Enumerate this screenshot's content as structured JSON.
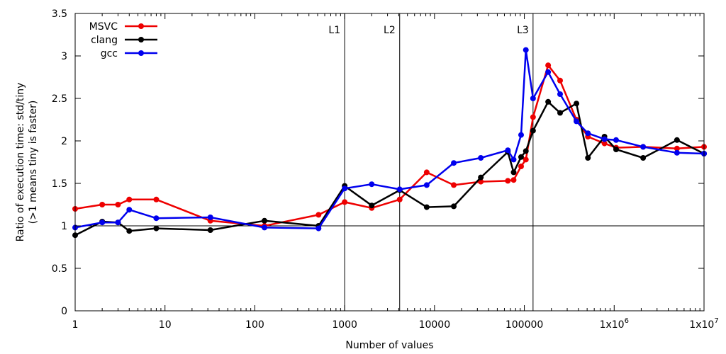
{
  "chart_data": {
    "type": "line",
    "xlabel": "Number of values",
    "ylabel_line1": "Ratio of execution time: std/tiny",
    "ylabel_line2": "(>1 means tiny is faster)",
    "x_scale": "log",
    "xlim": [
      1,
      10000000
    ],
    "ylim": [
      0,
      3.5
    ],
    "x_ticks": [
      {
        "value": 1,
        "label": "1"
      },
      {
        "value": 10,
        "label": "10"
      },
      {
        "value": 100,
        "label": "100"
      },
      {
        "value": 1000,
        "label": "1000"
      },
      {
        "value": 10000,
        "label": "10000"
      },
      {
        "value": 100000,
        "label": "100000"
      },
      {
        "value": 1000000,
        "label": "1x10",
        "sup": "6"
      },
      {
        "value": 10000000,
        "label": "1x10",
        "sup": "7"
      }
    ],
    "y_ticks": [
      {
        "value": 0,
        "label": "0"
      },
      {
        "value": 0.5,
        "label": "0.5"
      },
      {
        "value": 1,
        "label": "1"
      },
      {
        "value": 1.5,
        "label": "1.5"
      },
      {
        "value": 2,
        "label": "2"
      },
      {
        "value": 2.5,
        "label": "2.5"
      },
      {
        "value": 3,
        "label": "3"
      },
      {
        "value": 3.5,
        "label": "3.5"
      }
    ],
    "reference_line_y": 1,
    "vertical_markers": [
      {
        "x": 1000,
        "label": "L1"
      },
      {
        "x": 4096,
        "label": "L2"
      },
      {
        "x": 125000,
        "label": "L3"
      }
    ],
    "legend_position": "top-left",
    "grid": false,
    "series": [
      {
        "name": "MSVC",
        "color": "#ee0000",
        "points": [
          [
            1,
            1.2
          ],
          [
            2,
            1.25
          ],
          [
            3,
            1.25
          ],
          [
            4,
            1.31
          ],
          [
            8,
            1.31
          ],
          [
            32,
            1.06
          ],
          [
            128,
            1.0
          ],
          [
            512,
            1.13
          ],
          [
            1000,
            1.28
          ],
          [
            2000,
            1.21
          ],
          [
            4096,
            1.31
          ],
          [
            8192,
            1.63
          ],
          [
            16384,
            1.48
          ],
          [
            32768,
            1.52
          ],
          [
            65536,
            1.53
          ],
          [
            76000,
            1.54
          ],
          [
            92000,
            1.7
          ],
          [
            104000,
            1.78
          ],
          [
            125000,
            2.28
          ],
          [
            184000,
            2.89
          ],
          [
            250000,
            2.71
          ],
          [
            380000,
            2.25
          ],
          [
            510000,
            2.05
          ],
          [
            780000,
            1.97
          ],
          [
            1050000,
            1.92
          ],
          [
            2100000,
            1.93
          ],
          [
            5000000,
            1.91
          ],
          [
            10000000,
            1.93
          ]
        ]
      },
      {
        "name": "clang",
        "color": "#000000",
        "points": [
          [
            1,
            0.89
          ],
          [
            2,
            1.05
          ],
          [
            3,
            1.04
          ],
          [
            4,
            0.94
          ],
          [
            8,
            0.97
          ],
          [
            32,
            0.95
          ],
          [
            128,
            1.06
          ],
          [
            512,
            1.0
          ],
          [
            1000,
            1.47
          ],
          [
            2000,
            1.24
          ],
          [
            4096,
            1.42
          ],
          [
            8192,
            1.22
          ],
          [
            16384,
            1.23
          ],
          [
            32768,
            1.57
          ],
          [
            65536,
            1.87
          ],
          [
            76000,
            1.63
          ],
          [
            92000,
            1.81
          ],
          [
            104000,
            1.88
          ],
          [
            125000,
            2.12
          ],
          [
            184000,
            2.46
          ],
          [
            250000,
            2.33
          ],
          [
            380000,
            2.44
          ],
          [
            510000,
            1.8
          ],
          [
            780000,
            2.05
          ],
          [
            1050000,
            1.9
          ],
          [
            2100000,
            1.8
          ],
          [
            5000000,
            2.01
          ],
          [
            10000000,
            1.85
          ]
        ]
      },
      {
        "name": "gcc",
        "color": "#0000ee",
        "points": [
          [
            1,
            0.98
          ],
          [
            2,
            1.04
          ],
          [
            3,
            1.04
          ],
          [
            4,
            1.19
          ],
          [
            8,
            1.09
          ],
          [
            32,
            1.1
          ],
          [
            128,
            0.98
          ],
          [
            512,
            0.97
          ],
          [
            1000,
            1.44
          ],
          [
            2000,
            1.49
          ],
          [
            4096,
            1.43
          ],
          [
            8192,
            1.48
          ],
          [
            16384,
            1.74
          ],
          [
            32768,
            1.8
          ],
          [
            65536,
            1.89
          ],
          [
            76000,
            1.78
          ],
          [
            92000,
            2.07
          ],
          [
            104000,
            3.07
          ],
          [
            125000,
            2.5
          ],
          [
            184000,
            2.81
          ],
          [
            250000,
            2.55
          ],
          [
            380000,
            2.23
          ],
          [
            510000,
            2.09
          ],
          [
            780000,
            2.02
          ],
          [
            1050000,
            2.01
          ],
          [
            2100000,
            1.93
          ],
          [
            5000000,
            1.86
          ],
          [
            10000000,
            1.85
          ]
        ]
      }
    ]
  }
}
